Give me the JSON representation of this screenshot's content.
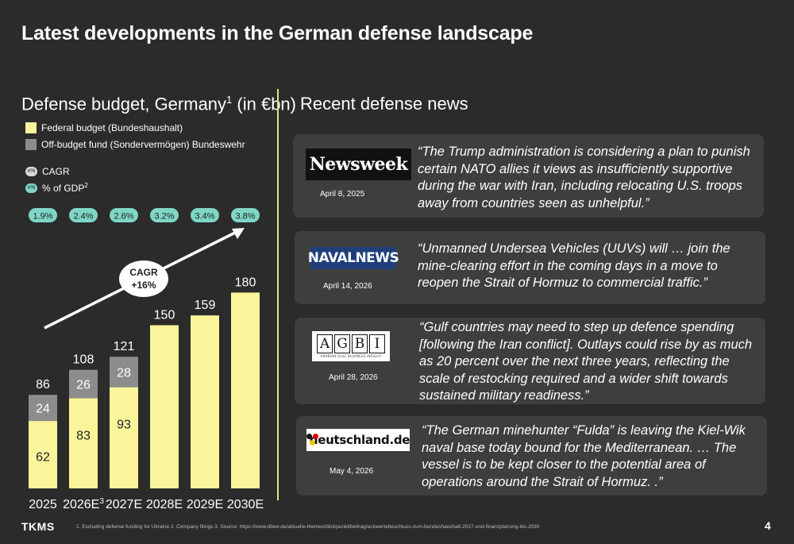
{
  "page": {
    "title": "Latest developments in the German defense landscape",
    "page_number": "4",
    "footer_logo": "TKMS",
    "footnote": "1. Excluding defense funding for Ukraine 2. Company filings 3. Source:  https://www.dbwv.de/aktuelle-themen/blickpunkt/beitrag/eckwertebeschluss-zum-bundeshaushalt-2027-und-finanzplanung-bis-2030"
  },
  "left": {
    "title": "Defense budget, Germany",
    "title_sup": "1",
    "title_suffix": " (in €bn)",
    "legend": {
      "federal": "Federal budget (Bundeshaushalt)",
      "offbudget": "Off-budget fund (Sondervermögen) Bundeswehr"
    },
    "keys": {
      "cagr": "CAGR",
      "gdp": "% of GDP",
      "gdp_sup": "2",
      "icon_text": "x%"
    }
  },
  "chart_data": {
    "type": "bar",
    "stacked": true,
    "categories": [
      "2025",
      "2026E",
      "2027E",
      "2028E",
      "2029E",
      "2030E"
    ],
    "category_sups": [
      "",
      "3",
      "",
      "",
      "",
      ""
    ],
    "series": [
      {
        "name": "Federal budget (Bundeshaushalt)",
        "values": [
          62,
          83,
          93,
          150,
          159,
          180
        ],
        "color": "#faf59a"
      },
      {
        "name": "Off-budget fund (Sondervermögen) Bundeswehr",
        "values": [
          24,
          26,
          28,
          0,
          0,
          0
        ],
        "color": "#8c8c8c"
      }
    ],
    "totals": [
      "86",
      "108",
      "121",
      "150",
      "159",
      "180"
    ],
    "inner_labels": {
      "federal": [
        "62",
        "83",
        "93",
        "",
        "",
        ""
      ],
      "offbudget": [
        "24",
        "26",
        "28",
        "",
        "",
        ""
      ]
    },
    "gdp_share": [
      "1.9%",
      "2.4%",
      "2.6%",
      "3.2%",
      "3.4%",
      "3.8%"
    ],
    "cagr_label": "CAGR",
    "cagr_value": "+16%",
    "ylim": [
      0,
      180
    ],
    "grid": false
  },
  "right": {
    "title": "Recent defense news",
    "news": [
      {
        "source": "Newsweek",
        "date": "April 8, 2025",
        "quote": "“The Trump administration is considering a plan to punish certain NATO allies it views as insufficiently supportive during the war with Iran, including relocating U.S. troops away from countries seen as unhelpful.”"
      },
      {
        "source": "NAVALNEWS",
        "date": "April 14, 2026",
        "quote": "“Unmanned Undersea Vehicles (UUVs) will … join the mine-clearing effort in the coming days in a move to reopen the Strait of Hormuz to commercial traffic.”"
      },
      {
        "source": "AGBI",
        "source_sub": "ARABIAN GULF BUSINESS INSIGHT",
        "date": "April 28, 2026",
        "quote": "“Gulf countries may need to step up defence spending [following the Iran conflict]. Outlays could rise by as much as 20 percent over the next three years, reflecting the scale of restocking required and a wider shift towards sustained military readiness.”"
      },
      {
        "source": "deutschland.de",
        "date": "May 4, 2026",
        "quote": "“The German minehunter “Fulda” is leaving the Kiel-Wik naval base today bound for the Mediterranean. … The vessel is to be kept closer to the potential area of operations around the Strait of Hormuz. .”"
      }
    ]
  }
}
